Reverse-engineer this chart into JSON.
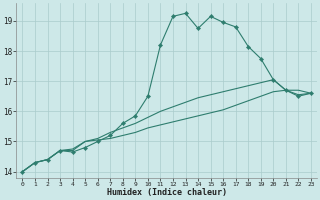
{
  "xlabel": "Humidex (Indice chaleur)",
  "bg_color": "#cde8e8",
  "grid_color": "#aacccc",
  "line_color": "#2e7d6e",
  "xlim": [
    -0.5,
    23.5
  ],
  "ylim": [
    13.8,
    19.6
  ],
  "yticks": [
    14,
    15,
    16,
    17,
    18,
    19
  ],
  "xticks": [
    0,
    1,
    2,
    3,
    4,
    5,
    6,
    7,
    8,
    9,
    10,
    11,
    12,
    13,
    14,
    15,
    16,
    17,
    18,
    19,
    20,
    21,
    22,
    23
  ],
  "series": [
    {
      "x": [
        0,
        1,
        2,
        3,
        4,
        5,
        6,
        7,
        8,
        9,
        10,
        11,
        12,
        13,
        14,
        15,
        16,
        17,
        18,
        19,
        20,
        21,
        22,
        23
      ],
      "y": [
        14.0,
        14.3,
        14.4,
        14.7,
        14.7,
        15.0,
        15.05,
        15.1,
        15.2,
        15.3,
        15.45,
        15.55,
        15.65,
        15.75,
        15.85,
        15.95,
        16.05,
        16.2,
        16.35,
        16.5,
        16.65,
        16.7,
        16.7,
        16.6
      ],
      "marker": false
    },
    {
      "x": [
        0,
        1,
        2,
        3,
        4,
        5,
        6,
        7,
        8,
        9,
        10,
        11,
        12,
        13,
        14,
        15,
        16,
        17,
        18,
        19,
        20,
        21,
        22,
        23
      ],
      "y": [
        14.0,
        14.3,
        14.4,
        14.7,
        14.75,
        15.0,
        15.1,
        15.3,
        15.45,
        15.6,
        15.8,
        16.0,
        16.15,
        16.3,
        16.45,
        16.55,
        16.65,
        16.75,
        16.85,
        16.95,
        17.05,
        16.7,
        16.55,
        16.6
      ],
      "marker": false
    },
    {
      "x": [
        0,
        1,
        2,
        3,
        4,
        5,
        6,
        7,
        8,
        9,
        10,
        11,
        12,
        13,
        14,
        15,
        16,
        17,
        18,
        19,
        20,
        21,
        22,
        23
      ],
      "y": [
        14.0,
        14.3,
        14.4,
        14.7,
        14.65,
        14.8,
        15.0,
        15.2,
        15.6,
        15.85,
        16.5,
        18.2,
        19.15,
        19.25,
        18.75,
        19.15,
        18.95,
        18.8,
        18.15,
        17.75,
        17.05,
        16.7,
        16.5,
        16.6
      ],
      "marker": true
    }
  ]
}
